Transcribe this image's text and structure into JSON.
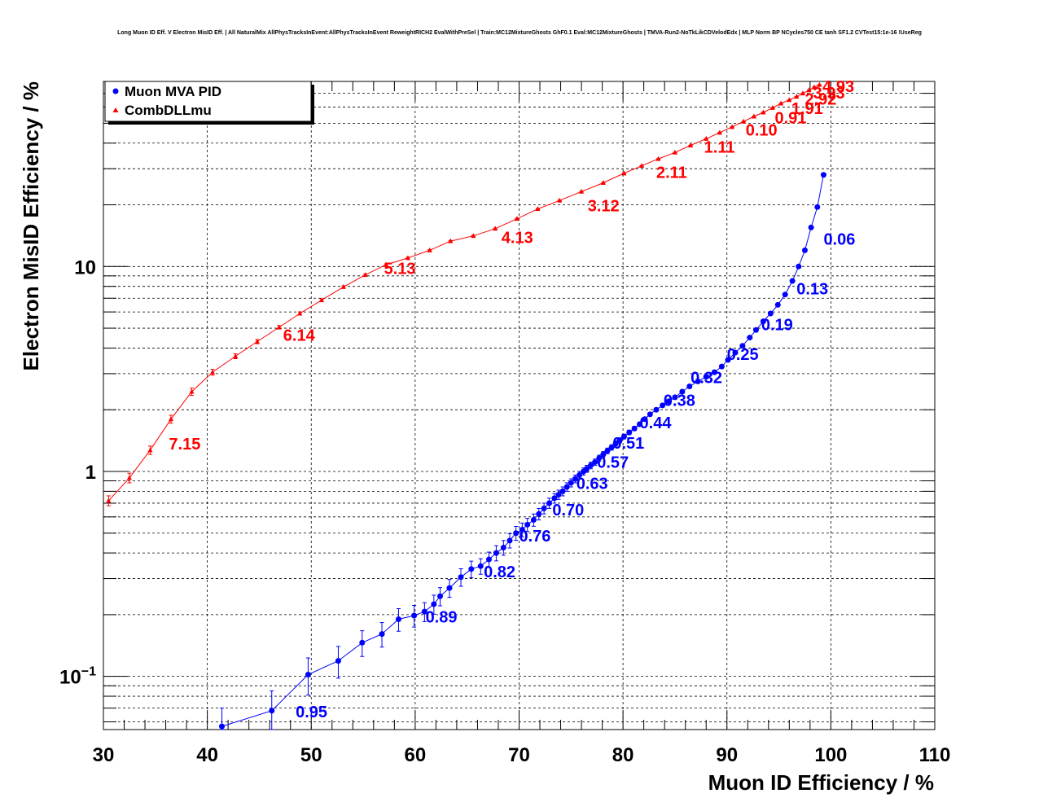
{
  "chart_data": {
    "type": "scatter",
    "title": "Long Muon ID Eff. V Electron MisID Eff. | All NaturalMix AllPhysTracksInEvent:AllPhysTracksInEvent ReweightRICH2 EvalWithPreSel | Train:MC12MixtureGhosts GhF0.1 Eval:MC12MixtureGhosts | TMVA-Run2-NoTkLikCDVelodEdx | MLP Norm BP NCycles750 CE tanh SF1.2 CVTest15:1e-16 !UseReg",
    "xlabel": "Muon ID Efficiency / %",
    "ylabel": "Electron MisID Efficiency / %",
    "xlim": [
      30,
      110
    ],
    "ylim": [
      0.055,
      80
    ],
    "yscale": "log",
    "grid": true,
    "legend_position": "top-left",
    "x_ticks": [
      "30",
      "40",
      "50",
      "60",
      "70",
      "80",
      "90",
      "100",
      "110"
    ],
    "y_ticks": [
      {
        "value": 0.1,
        "base": "10",
        "exp": "−1"
      },
      {
        "value": 1,
        "base": "1",
        "exp": ""
      },
      {
        "value": 10,
        "base": "10",
        "exp": ""
      }
    ],
    "series": [
      {
        "name": "Muon MVA PID",
        "color": "#0000ff",
        "marker": "circle",
        "x": [
          41.4,
          46.2,
          49.7,
          52.6,
          54.9,
          56.8,
          58.4,
          59.9,
          60.9,
          61.8,
          62.4,
          63.3,
          64.4,
          65.4,
          66.3,
          67.1,
          67.8,
          68.5,
          69.1,
          69.7,
          70.3,
          70.8,
          71.4,
          71.9,
          72.4,
          72.9,
          73.4,
          73.8,
          74.2,
          74.6,
          75.0,
          75.4,
          75.8,
          76.2,
          76.5,
          76.9,
          77.3,
          77.7,
          78.1,
          78.5,
          78.9,
          79.3,
          79.7,
          80.1,
          80.6,
          81.1,
          81.6,
          82.1,
          82.6,
          83.2,
          83.8,
          84.4,
          85.0,
          85.7,
          86.4,
          87.2,
          88.0,
          88.8,
          89.5,
          90.1,
          90.8,
          91.5,
          92.2,
          92.8,
          93.5,
          94.2,
          94.9,
          95.6,
          96.3,
          96.9,
          97.5,
          98.1,
          98.7,
          99.3
        ],
        "y": [
          0.057,
          0.068,
          0.102,
          0.119,
          0.146,
          0.161,
          0.19,
          0.198,
          0.207,
          0.225,
          0.246,
          0.27,
          0.305,
          0.334,
          0.345,
          0.372,
          0.4,
          0.425,
          0.46,
          0.5,
          0.52,
          0.55,
          0.58,
          0.62,
          0.66,
          0.7,
          0.74,
          0.77,
          0.8,
          0.84,
          0.88,
          0.92,
          0.96,
          1.0,
          1.03,
          1.07,
          1.11,
          1.16,
          1.21,
          1.26,
          1.31,
          1.37,
          1.42,
          1.48,
          1.55,
          1.62,
          1.7,
          1.8,
          1.9,
          2.0,
          2.1,
          2.2,
          2.3,
          2.45,
          2.6,
          2.75,
          2.9,
          3.05,
          3.25,
          3.5,
          3.8,
          4.1,
          4.5,
          4.9,
          5.4,
          5.9,
          6.5,
          7.3,
          8.5,
          10.0,
          12.0,
          15.5,
          19.5,
          28.0
        ],
        "yerr": [
          0.013,
          0.017,
          0.021,
          0.021,
          0.021,
          0.022,
          0.024,
          0.024,
          0.022,
          0.024,
          0.025,
          0.027,
          0.03,
          0.031,
          0.03,
          0.032,
          0.034,
          0.035,
          0.037,
          0.039,
          0.04,
          0.04,
          0.04,
          0.04,
          0.04,
          0.04,
          0.04,
          0.04,
          0.04,
          0.04,
          0.04,
          0.04,
          0.04,
          0.04,
          0.04,
          0.04,
          0.04,
          0.04,
          0.04,
          0.04,
          0.04,
          0.04,
          0.04,
          0.04,
          0.04,
          0.04,
          0.04,
          0.04,
          0.04,
          0.04,
          0.04,
          0.04,
          0.05,
          0.05,
          0.05,
          0.05,
          0.05,
          0.05,
          0.05,
          0.06,
          0.06,
          0.06,
          0.06,
          0.07,
          0.07,
          0.07,
          0.08,
          0.08,
          0.09,
          0.1,
          0.1,
          0.12,
          0.14,
          0.18
        ],
        "labels": [
          {
            "text": "0.95",
            "x": 48.5,
            "y": 0.063
          },
          {
            "text": "0.89",
            "x": 61.0,
            "y": 0.183
          },
          {
            "text": "0.82",
            "x": 66.6,
            "y": 0.305
          },
          {
            "text": "0.76",
            "x": 70.0,
            "y": 0.455
          },
          {
            "text": "0.70",
            "x": 73.2,
            "y": 0.61
          },
          {
            "text": "0.63",
            "x": 75.5,
            "y": 0.82
          },
          {
            "text": "0.57",
            "x": 77.5,
            "y": 1.04
          },
          {
            "text": "0.51",
            "x": 79.0,
            "y": 1.29
          },
          {
            "text": "0.44",
            "x": 81.6,
            "y": 1.62
          },
          {
            "text": "0.38",
            "x": 83.9,
            "y": 2.09
          },
          {
            "text": "0.32",
            "x": 86.5,
            "y": 2.7
          },
          {
            "text": "0.25",
            "x": 90.0,
            "y": 3.5
          },
          {
            "text": "0.19",
            "x": 93.3,
            "y": 4.9
          },
          {
            "text": "0.13",
            "x": 96.7,
            "y": 7.3
          },
          {
            "text": "0.06",
            "x": 99.3,
            "y": 12.8
          }
        ]
      },
      {
        "name": "CombDLLmu",
        "color": "#ff0000",
        "marker": "triangle",
        "x": [
          30.5,
          32.5,
          34.5,
          36.5,
          38.5,
          40.5,
          42.7,
          44.8,
          46.9,
          48.9,
          51.0,
          53.1,
          55.2,
          57.2,
          59.3,
          61.4,
          63.4,
          65.6,
          67.7,
          69.8,
          71.8,
          73.9,
          76.0,
          78.1,
          80.1,
          81.8,
          83.4,
          85.0,
          86.5,
          88.0,
          89.3,
          90.5,
          91.6,
          92.6,
          93.5,
          94.4,
          95.2,
          96.0,
          96.7,
          97.3,
          97.9,
          98.4,
          98.9
        ],
        "y": [
          0.72,
          0.93,
          1.27,
          1.8,
          2.45,
          3.05,
          3.65,
          4.3,
          5.05,
          5.9,
          6.85,
          7.95,
          9.1,
          10.2,
          11.0,
          12.0,
          13.3,
          14.1,
          15.3,
          17.1,
          19.1,
          21.0,
          23.2,
          25.6,
          28.5,
          31.0,
          33.5,
          36.0,
          39.0,
          42.0,
          45.0,
          48.0,
          51.0,
          54.0,
          56.5,
          59.5,
          62.5,
          65.0,
          67.5,
          70.0,
          72.5,
          75.0,
          77.0
        ],
        "yerr": [
          0.04,
          0.05,
          0.06,
          0.08,
          0.1,
          0.1,
          0.1,
          0.1,
          0.1,
          0.1,
          0.1,
          0.1,
          0.1,
          0.1,
          0.1,
          0.1,
          0.1,
          0.1,
          0.1,
          0.1,
          0.1,
          0.1,
          0.1,
          0.1,
          0.1,
          0.1,
          0.1,
          0.1,
          0.1,
          0.1,
          0.1,
          0.1,
          0.1,
          0.1,
          0.1,
          0.1,
          0.1,
          0.1,
          0.1,
          0.1,
          0.1,
          0.1,
          0.1
        ],
        "labels": [
          {
            "text": "7.15",
            "x": 36.3,
            "y": 1.28
          },
          {
            "text": "6.14",
            "x": 47.3,
            "y": 4.35
          },
          {
            "text": "5.13",
            "x": 57.0,
            "y": 9.2
          },
          {
            "text": "4.13",
            "x": 68.3,
            "y": 13.0
          },
          {
            "text": "3.12",
            "x": 76.6,
            "y": 18.6
          },
          {
            "text": "2.11",
            "x": 83.2,
            "y": 27.0
          },
          {
            "text": "1.11",
            "x": 87.8,
            "y": 36.0
          },
          {
            "text": "0.10",
            "x": 91.8,
            "y": 43.5
          },
          {
            "text": "0.91",
            "x": 94.6,
            "y": 50.0
          },
          {
            "text": "1.91",
            "x": 96.2,
            "y": 55.5
          },
          {
            "text": "2.92",
            "x": 97.5,
            "y": 61.5
          },
          {
            "text": "3.93",
            "x": 98.3,
            "y": 66.0
          },
          {
            "text": "4.93",
            "x": 99.2,
            "y": 71.0
          }
        ]
      }
    ]
  }
}
